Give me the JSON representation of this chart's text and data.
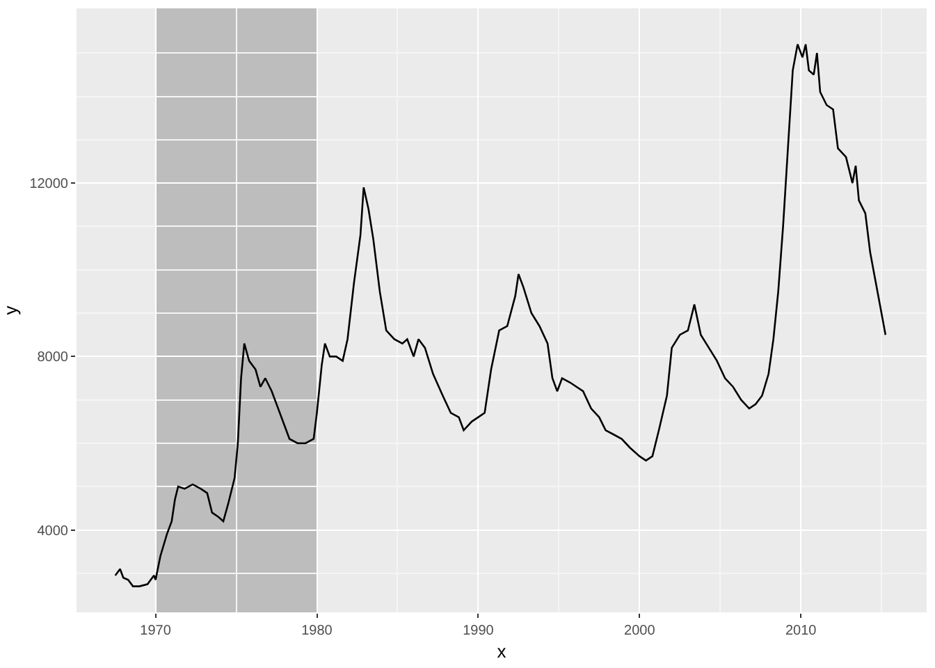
{
  "chart_data": {
    "type": "line",
    "xlabel": "x",
    "ylabel": "y",
    "x": [
      1967.5,
      1967.8,
      1968.0,
      1968.3,
      1968.6,
      1969.0,
      1969.5,
      1969.9,
      1970.0,
      1970.3,
      1970.7,
      1971.0,
      1971.2,
      1971.4,
      1971.8,
      1972.3,
      1972.8,
      1973.2,
      1973.5,
      1973.9,
      1974.2,
      1974.5,
      1974.9,
      1975.1,
      1975.3,
      1975.5,
      1975.8,
      1976.2,
      1976.5,
      1976.8,
      1977.2,
      1977.5,
      1977.9,
      1978.3,
      1978.8,
      1979.3,
      1979.8,
      1980.0,
      1980.3,
      1980.5,
      1980.8,
      1981.2,
      1981.6,
      1981.9,
      1982.3,
      1982.7,
      1982.9,
      1983.2,
      1983.5,
      1983.9,
      1984.3,
      1984.8,
      1985.3,
      1985.6,
      1986.0,
      1986.3,
      1986.7,
      1987.2,
      1987.8,
      1988.3,
      1988.8,
      1989.1,
      1989.6,
      1990.0,
      1990.4,
      1990.8,
      1991.3,
      1991.8,
      1992.3,
      1992.5,
      1992.8,
      1993.3,
      1993.8,
      1994.3,
      1994.6,
      1994.9,
      1995.2,
      1995.7,
      1996.1,
      1996.5,
      1997.0,
      1997.5,
      1997.9,
      1998.4,
      1998.9,
      1999.4,
      2000.0,
      2000.4,
      2000.8,
      2001.2,
      2001.7,
      2002.0,
      2002.5,
      2003.0,
      2003.4,
      2003.8,
      2004.3,
      2004.8,
      2005.3,
      2005.8,
      2006.3,
      2006.8,
      2007.2,
      2007.6,
      2008.0,
      2008.3,
      2008.6,
      2008.9,
      2009.2,
      2009.5,
      2009.8,
      2010.1,
      2010.3,
      2010.5,
      2010.8,
      2011.0,
      2011.2,
      2011.6,
      2012.0,
      2012.3,
      2012.8,
      2013.2,
      2013.4,
      2013.6,
      2014.0,
      2014.3,
      2014.6,
      2015.0,
      2015.25
    ],
    "series": [
      {
        "color": "#000000",
        "values": [
          2950,
          3100,
          2900,
          2850,
          2700,
          2700,
          2750,
          2950,
          2850,
          3400,
          3900,
          4200,
          4700,
          5000,
          4950,
          5050,
          4950,
          4850,
          4400,
          4300,
          4200,
          4600,
          5200,
          6000,
          7500,
          8300,
          7900,
          7700,
          7300,
          7500,
          7200,
          6900,
          6500,
          6100,
          6000,
          6000,
          6100,
          6700,
          7800,
          8300,
          8000,
          8000,
          7900,
          8400,
          9700,
          10800,
          11900,
          11400,
          10700,
          9500,
          8600,
          8400,
          8300,
          8400,
          8000,
          8400,
          8200,
          7600,
          7100,
          6700,
          6600,
          6300,
          6500,
          6600,
          6700,
          7700,
          8600,
          8700,
          9400,
          9900,
          9600,
          9000,
          8700,
          8300,
          7500,
          7200,
          7500,
          7400,
          7300,
          7200,
          6800,
          6600,
          6300,
          6200,
          6100,
          5900,
          5700,
          5600,
          5700,
          6300,
          7100,
          8200,
          8500,
          8600,
          9200,
          8500,
          8200,
          7900,
          7500,
          7300,
          7000,
          6800,
          6900,
          7100,
          7600,
          8400,
          9500,
          11000,
          12800,
          14600,
          15200,
          14900,
          15200,
          14600,
          14500,
          15000,
          14100,
          13800,
          13700,
          12800,
          12600,
          12000,
          12400,
          11600,
          11300,
          10400,
          9800,
          9000,
          8500
        ]
      }
    ],
    "bands": [
      {
        "axis": "x",
        "from": 1970,
        "to": 1980,
        "color": "#bdbdbd"
      }
    ],
    "xlim": [
      1965.1,
      2017.8
    ],
    "xticks": [
      1970,
      1980,
      1990,
      2000,
      2010
    ],
    "ylim": [
      2100,
      16030
    ],
    "yticks": [
      4000,
      8000,
      12000
    ],
    "grid": true,
    "marker": "none",
    "line_style": "solid"
  }
}
